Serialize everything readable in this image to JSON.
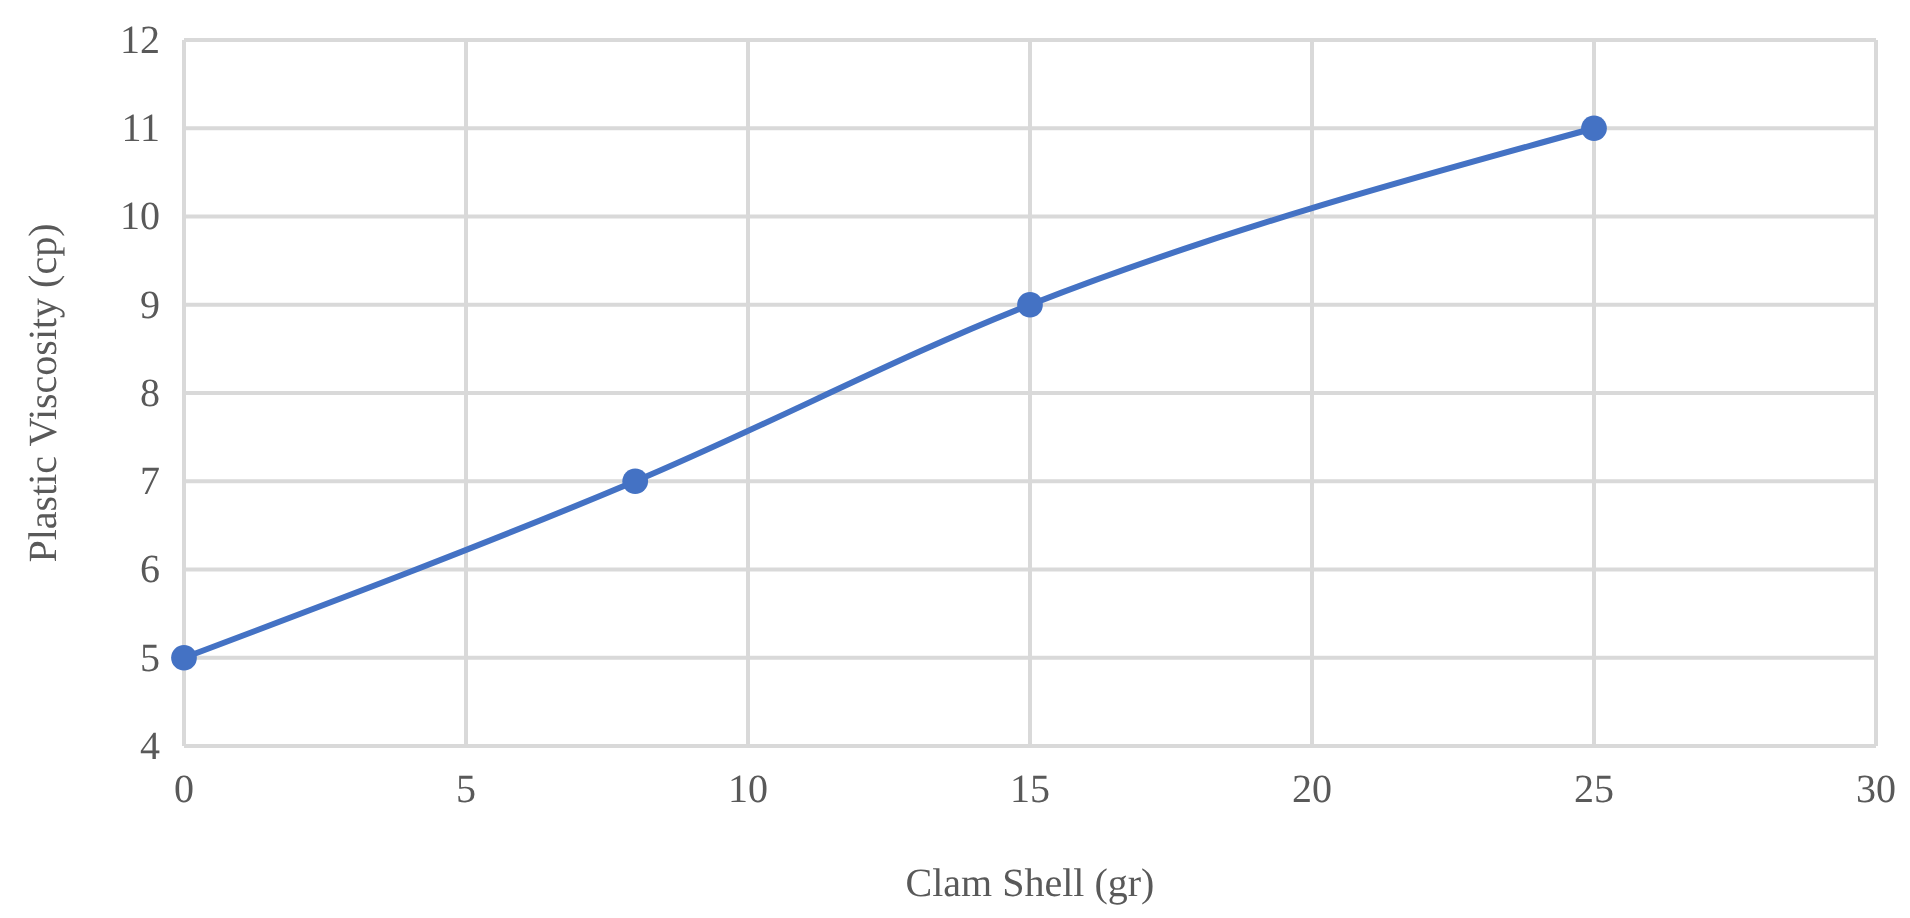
{
  "chart_data": {
    "type": "line",
    "xlabel": "Clam Shell (gr)",
    "ylabel": "Plastic Viscosity (cp)",
    "x": [
      0,
      8,
      15,
      25
    ],
    "series": [
      {
        "color": "#4472c4",
        "values": [
          5,
          7,
          9,
          11
        ]
      }
    ],
    "xlim": [
      0,
      30
    ],
    "xticks": [
      0,
      5,
      10,
      15,
      20,
      25,
      30
    ],
    "ylim": [
      4,
      12
    ],
    "yticks": [
      4,
      5,
      6,
      7,
      8,
      9,
      10,
      11,
      12
    ],
    "grid": true,
    "marker": "circle",
    "line_style": "solid"
  }
}
